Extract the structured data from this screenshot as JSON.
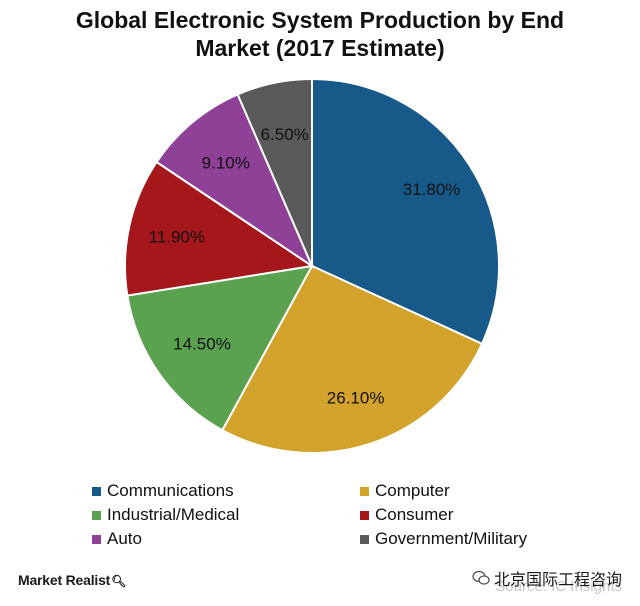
{
  "chart_data": {
    "type": "pie",
    "title_line1": "Global Electronic System Production by End",
    "title_line2": "Market (2017 Estimate)",
    "slices": [
      {
        "name": "Communications",
        "value": 31.8,
        "label": "31.80%",
        "color": "#175a8a"
      },
      {
        "name": "Computer",
        "value": 26.1,
        "label": "26.10%",
        "color": "#d2a22b"
      },
      {
        "name": "Industrial/Medical",
        "value": 14.5,
        "label": "14.50%",
        "color": "#5aa150"
      },
      {
        "name": "Consumer",
        "value": 11.9,
        "label": "11.90%",
        "color": "#a6171c"
      },
      {
        "name": "Auto",
        "value": 9.1,
        "label": "9.10%",
        "color": "#8f4097"
      },
      {
        "name": "Government/Military",
        "value": 6.5,
        "label": "6.50%",
        "color": "#5a5a5a"
      }
    ],
    "legend_placement": "bottom"
  },
  "footer": {
    "brand": "Market Realist",
    "source": "Source: IC Insights",
    "watermark": "北京国际工程咨询"
  },
  "icons": {
    "brand_icon": "magnifier-icon",
    "watermark_icon": "wechat-icon"
  }
}
